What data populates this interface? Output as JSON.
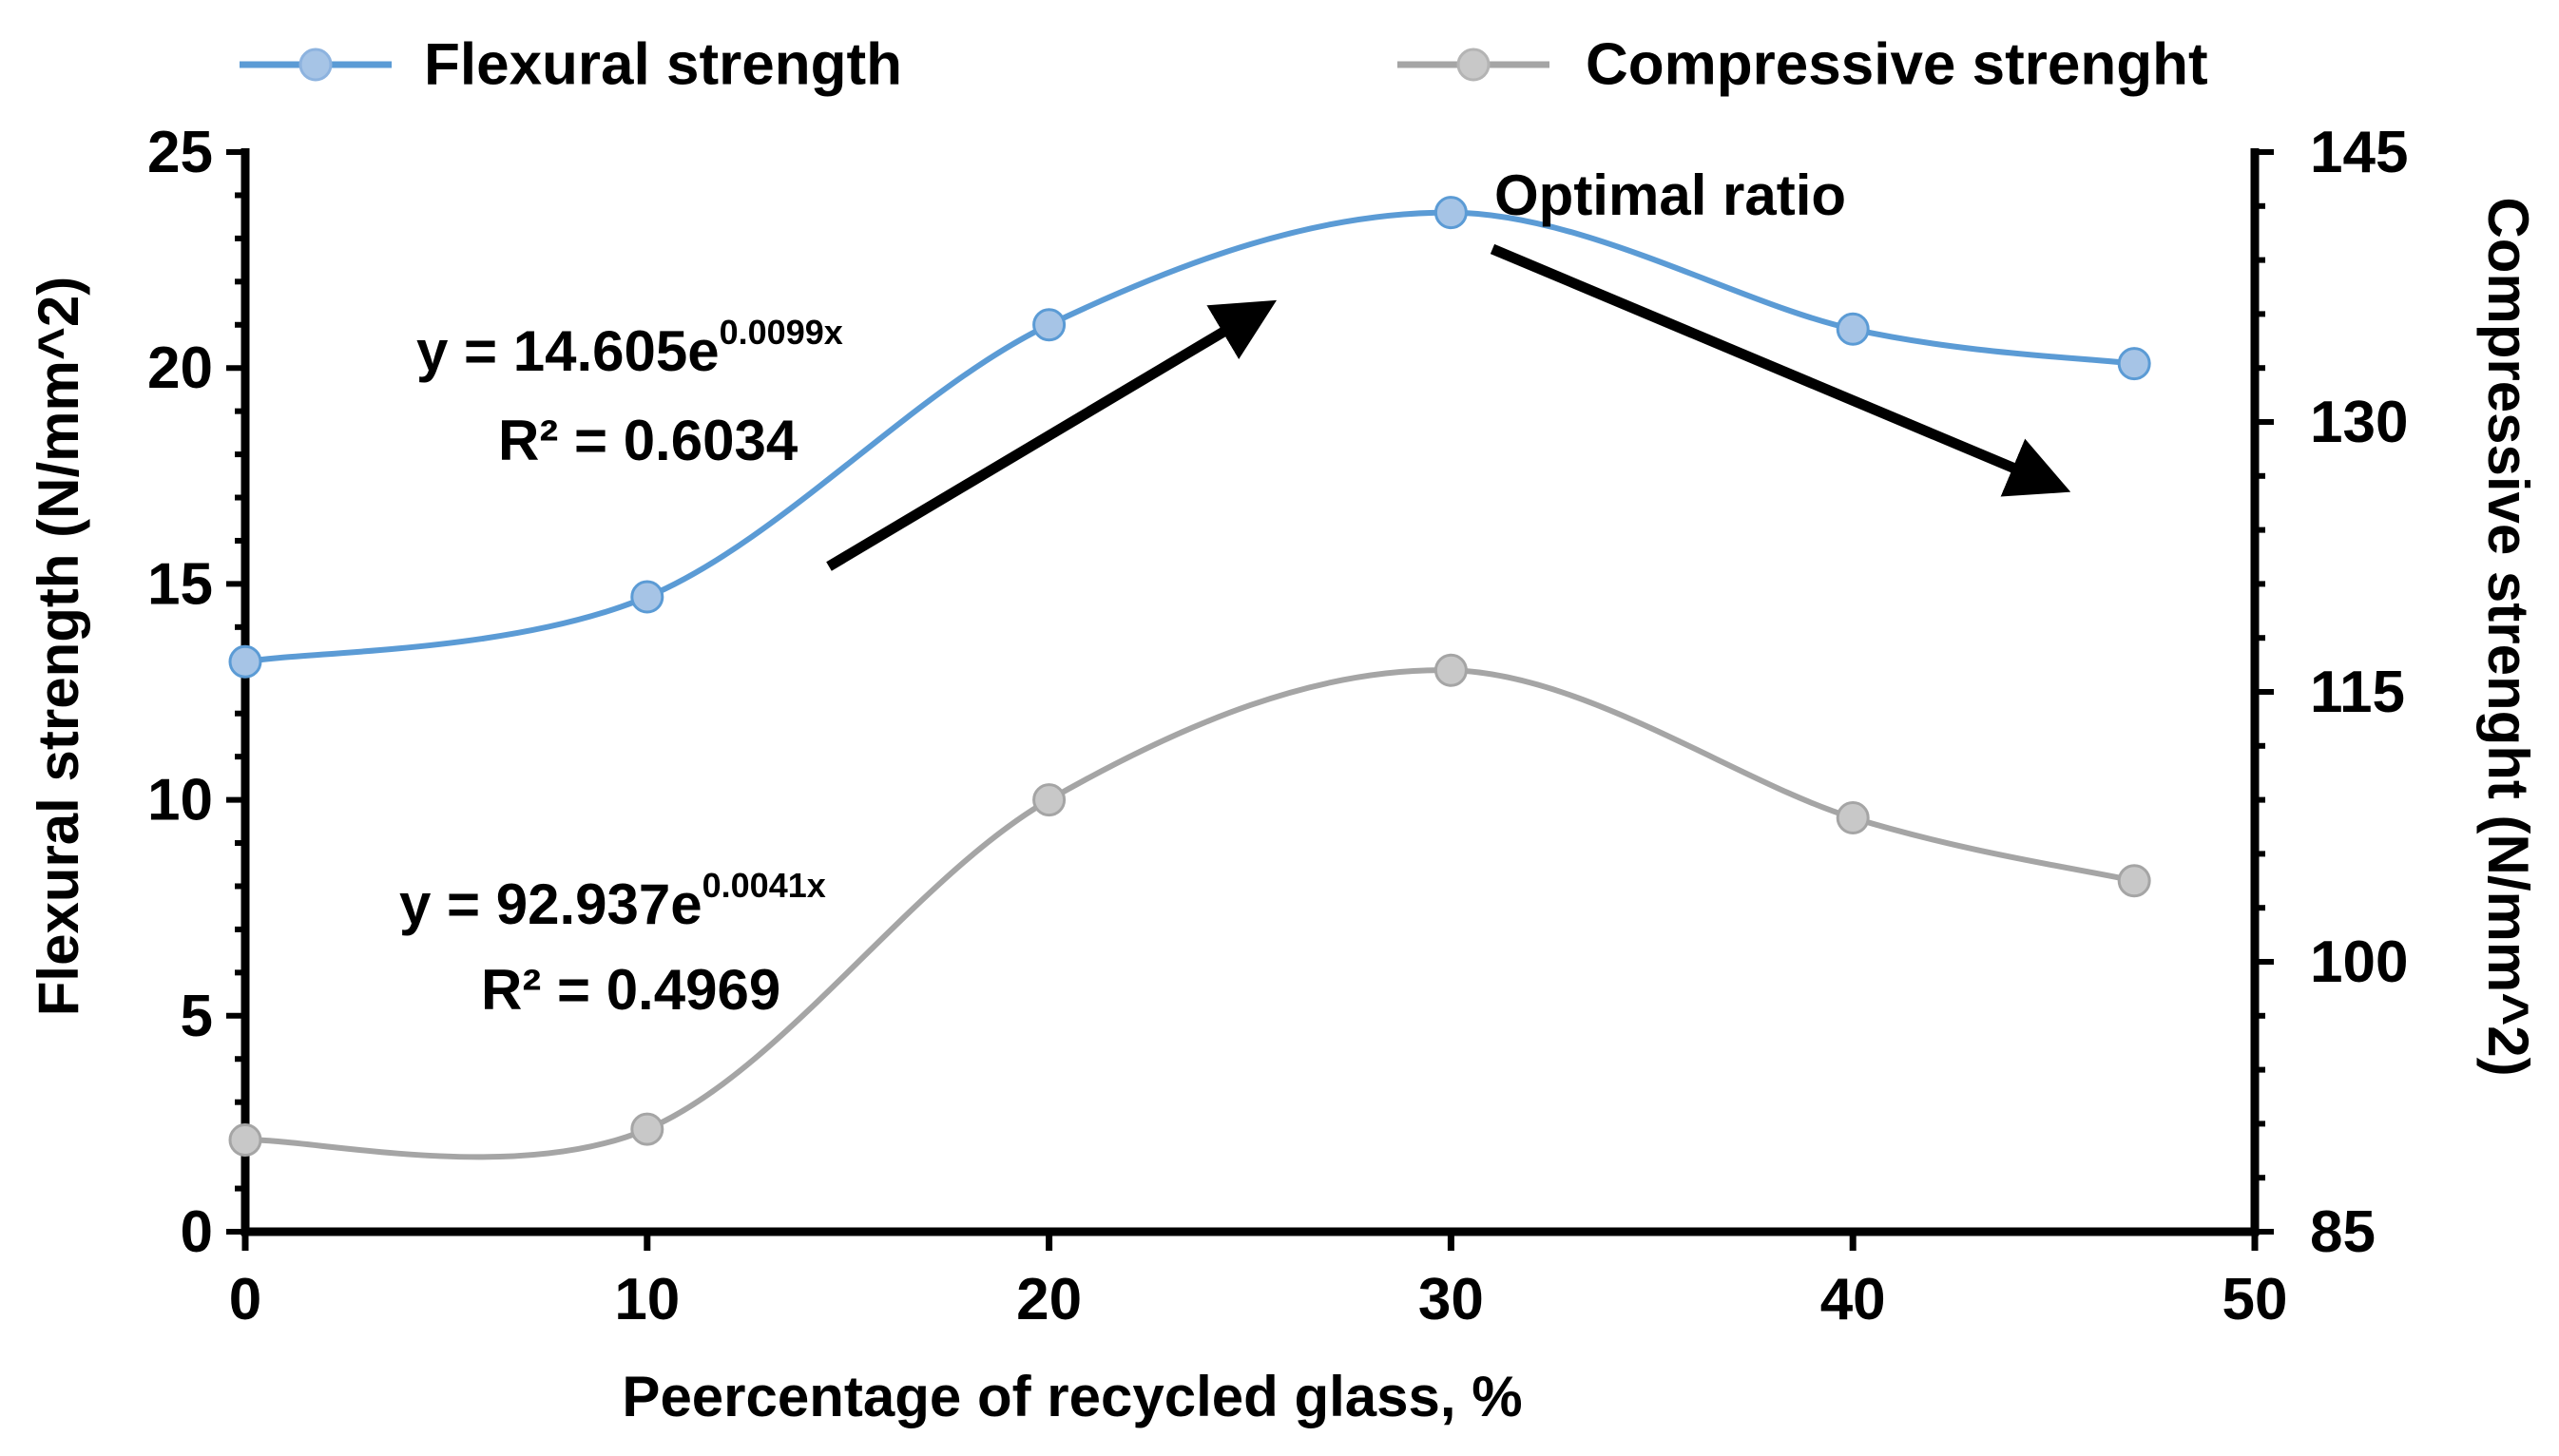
{
  "chart_data": {
    "type": "line",
    "title": "",
    "xlabel": "Peercentage of recycled glass, %",
    "ylabel": "Flexural strength (N/mm^2)",
    "y2label": "Compressive strenght (N/mm^2)",
    "xlim": [
      0,
      50
    ],
    "ylim": [
      0,
      25
    ],
    "y2lim": [
      85,
      145
    ],
    "x_ticks": [
      "0",
      "10",
      "20",
      "30",
      "40",
      "50"
    ],
    "y_ticks": [
      "0",
      "5",
      "10",
      "15",
      "20",
      "25"
    ],
    "y2_ticks": [
      "85",
      "100",
      "115",
      "130",
      "145"
    ],
    "grid": false,
    "legend_position": "top",
    "series": [
      {
        "name": "Flexural strength",
        "axis": "left",
        "color": "#5b9bd5",
        "marker_fill": "#a6c4e6",
        "x": [
          0,
          10,
          20,
          30,
          40,
          47
        ],
        "values": [
          13.2,
          14.7,
          21.0,
          23.6,
          20.9,
          20.1
        ]
      },
      {
        "name": "Compressive strenght",
        "axis": "right",
        "color": "#a5a5a5",
        "marker_fill": "#c8c8c8",
        "x": [
          0,
          10,
          20,
          30,
          40,
          47
        ],
        "values": [
          90.1,
          90.7,
          109.0,
          116.2,
          108.0,
          104.5
        ]
      }
    ],
    "annotations": {
      "flexural_fit_prefix": "y = 14.605e",
      "flexural_fit_exp": "0.0099x",
      "flexural_r2": "R² = 0.6034",
      "compressive_fit_prefix": "y = 92.937e",
      "compressive_fit_exp": "0.0041x",
      "compressive_r2": "R² = 0.4969",
      "optimal_label": "Optimal ratio"
    }
  }
}
